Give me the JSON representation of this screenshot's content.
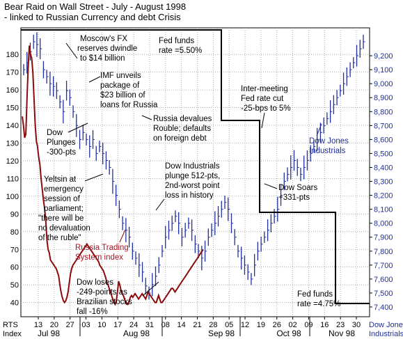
{
  "title": [
    "Bear Raid on Wall Street - July - August 1998",
    "- linked to Russian Currency and debt Crisis"
  ],
  "colors": {
    "dow_bars": "#1f2f9c",
    "rts_line": "#8b0a0a",
    "fed_line": "#000000",
    "grid": "#888888",
    "right_axis_text": "#1f2f9c"
  },
  "chart_data": {
    "type": "line",
    "left_axis": {
      "label": [
        "RTS",
        "Index"
      ],
      "ticks": [
        40,
        50,
        60,
        70,
        80,
        90,
        100,
        110,
        120,
        130,
        140,
        150,
        160,
        170,
        180
      ],
      "range": [
        32,
        195
      ]
    },
    "right_axis": {
      "label": [
        "Dow Jones",
        "Industrials"
      ],
      "ticks": [
        7400,
        7500,
        7600,
        7700,
        7800,
        7900,
        8000,
        8100,
        8200,
        8300,
        8400,
        8500,
        8600,
        8700,
        8800,
        8900,
        9000,
        9100,
        9200
      ],
      "tick_labels": [
        "7,400",
        "7,500",
        "7,600",
        "7,700",
        "7,800",
        "7,900",
        "8,000",
        "8,100",
        "8,200",
        "8,300",
        "8,400",
        "8,500",
        "8,600",
        "8,700",
        "8,800",
        "8,900",
        "9,000",
        "9,100",
        "9,200"
      ],
      "range": [
        7330,
        9400
      ]
    },
    "x_ticks": [
      "13",
      "20",
      "27",
      "03",
      "10",
      "17",
      "24",
      "31",
      "08",
      "14",
      "21",
      "28",
      "05",
      "12",
      "19",
      "26",
      "02",
      "09",
      "16",
      "23",
      "30"
    ],
    "months": [
      "Jul 98",
      "Aug 98",
      "Sep 98",
      "Oct 98",
      "Nov 98"
    ],
    "grid": true,
    "series": [
      {
        "name": "Russia Trading System index",
        "axis": "left",
        "values": [
          145,
          140,
          133,
          135,
          155,
          172,
          185,
          180,
          178,
          170,
          155,
          140,
          131,
          128,
          122,
          118,
          110,
          104,
          98,
          93,
          86,
          75,
          70,
          68,
          64,
          63,
          62,
          61,
          60,
          59,
          57,
          55,
          50,
          46,
          43,
          41,
          40,
          41,
          43,
          46,
          51,
          56,
          59,
          61,
          62,
          63,
          64,
          65,
          66,
          67,
          68,
          69,
          70,
          71,
          72,
          73,
          72,
          71,
          70,
          69,
          68,
          67,
          66,
          65,
          64,
          63,
          61,
          60,
          59,
          58,
          56,
          54,
          51,
          50,
          48,
          46,
          44,
          42,
          40,
          39,
          41,
          46,
          52,
          50,
          47,
          45,
          44,
          42,
          40,
          39,
          39,
          41,
          43,
          44,
          43,
          44,
          45,
          44,
          43,
          42,
          43,
          44,
          45,
          44,
          43,
          42,
          44,
          46,
          45,
          44,
          43,
          42,
          41,
          40,
          40,
          42,
          44,
          42,
          40,
          40,
          41,
          42,
          43,
          44,
          45,
          46,
          47,
          48,
          48,
          47,
          46,
          47,
          48,
          49,
          50,
          51,
          52,
          53,
          54,
          55,
          56,
          57,
          58,
          59,
          60,
          61,
          62,
          63,
          64,
          65,
          66,
          67,
          68,
          69,
          70
        ]
      },
      {
        "name": "Dow Jones Industrials",
        "axis": "right",
        "type": "bar",
        "values": [
          9100,
          9150,
          9230,
          9300,
          9280,
          9250,
          9100,
          9050,
          9000,
          8980,
          8950,
          8870,
          8800,
          8950,
          8900,
          8800,
          8700,
          8600,
          8650,
          8600,
          8550,
          8600,
          8500,
          8550,
          8500,
          8450,
          8400,
          8300,
          8200,
          8100,
          8000,
          7950,
          7900,
          7800,
          7750,
          7700,
          7650,
          7550,
          7500,
          7560,
          7620,
          7700,
          7800,
          7900,
          7950,
          8000,
          8050,
          8000,
          7900,
          7950,
          8000,
          7950,
          7850,
          7800,
          7750,
          7800,
          7900,
          7950,
          8000,
          8050,
          8100,
          8150,
          8100,
          8000,
          7900,
          7800,
          7750,
          7700,
          7650,
          7600,
          7700,
          7800,
          7850,
          7900,
          7950,
          8000,
          8050,
          8100,
          8200,
          8300,
          8350,
          8400,
          8450,
          8400,
          8350,
          8400,
          8450,
          8500,
          8550,
          8600,
          8650,
          8700,
          8750,
          8800,
          8850,
          8900,
          8950,
          9000,
          9050,
          9100,
          9150,
          9200,
          9250,
          9300
        ]
      },
      {
        "name": "Fed funds rate",
        "axis": "right",
        "type": "step",
        "values": [
          5.5,
          5.25,
          5.0,
          4.75
        ]
      }
    ]
  },
  "annotations": {
    "moscow_fx": [
      "Moscow's FX",
      "reserves dwindle",
      "to $14 billion"
    ],
    "imf": [
      "IMF unveils",
      "package of",
      "$23 billion of",
      "loans for Russia"
    ],
    "russia_devalues": [
      "Russia devalues",
      "Rouble; defaults",
      "on foreign debt"
    ],
    "fed_550": [
      "Fed funds",
      "rate =5.50%"
    ],
    "dow_plunges_300": [
      "Dow",
      "Plunges",
      "-300-pts"
    ],
    "yeltsin": [
      "Yeltsin at",
      "emergency",
      "session of",
      "parliament;",
      "\"there will be",
      "no devaluation",
      "of the ruble\""
    ],
    "russia_trading": [
      "Russia Trading",
      "System index"
    ],
    "dow_512": [
      "Dow Industrials",
      "plunge 512-pts,",
      "2nd-worst point",
      "loss in history"
    ],
    "inter_meeting": [
      "Inter-meeting",
      "Fed rate cut",
      "-25-bps to 5%"
    ],
    "dow_jones_label": [
      "Dow Jones",
      "Industrials"
    ],
    "dow_soars": [
      "Dow Soars",
      "+331-pts"
    ],
    "dow_loses_249": [
      "Dow loses",
      "-249-points as",
      "Brazilian stocks",
      "fall -16%"
    ],
    "fed_475": [
      "Fed funds",
      "rate =4.75%"
    ]
  }
}
